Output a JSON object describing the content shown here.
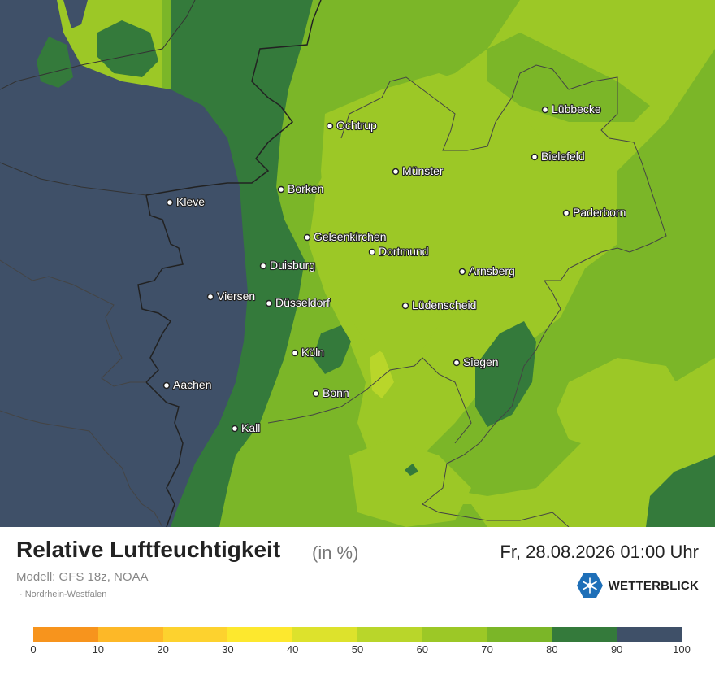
{
  "map": {
    "cities": [
      {
        "name": "Ochtrup"
      },
      {
        "name": "Lübbecke"
      },
      {
        "name": "Bielefeld"
      },
      {
        "name": "Münster"
      },
      {
        "name": "Borken"
      },
      {
        "name": "Kleve"
      },
      {
        "name": "Paderborn"
      },
      {
        "name": "Gelsenkirchen"
      },
      {
        "name": "Dortmund"
      },
      {
        "name": "Duisburg"
      },
      {
        "name": "Arnsberg"
      },
      {
        "name": "Viersen"
      },
      {
        "name": "Düsseldorf"
      },
      {
        "name": "Lüdenscheid"
      },
      {
        "name": "Köln"
      },
      {
        "name": "Siegen"
      },
      {
        "name": "Aachen"
      },
      {
        "name": "Bonn"
      },
      {
        "name": "Kall"
      }
    ]
  },
  "header": {
    "title": "Relative Luftfeuchtigkeit",
    "unit": "(in %)",
    "model": "Modell: GFS 18z, NOAA",
    "region": "· Nordrhein-Westfalen",
    "datetime": "Fr, 28.08.2026 01:00 Uhr",
    "brand": "WETTERBLICK",
    "brand_icon": "sun-snowflake-icon"
  },
  "legend": {
    "ticks": [
      "0",
      "10",
      "20",
      "30",
      "40",
      "50",
      "60",
      "70",
      "80",
      "90",
      "100"
    ],
    "colors": [
      "#f7941d",
      "#fdb827",
      "#fdd22e",
      "#fde82e",
      "#dde22c",
      "#b9d62a",
      "#9cc826",
      "#7bb628",
      "#347a3b",
      "#3f5068"
    ]
  },
  "colors": {
    "very_humid": "#3f5068",
    "humid": "#347a3b",
    "green": "#7bb628",
    "light_green": "#9cc826",
    "yellow_green": "#b9d62a"
  }
}
